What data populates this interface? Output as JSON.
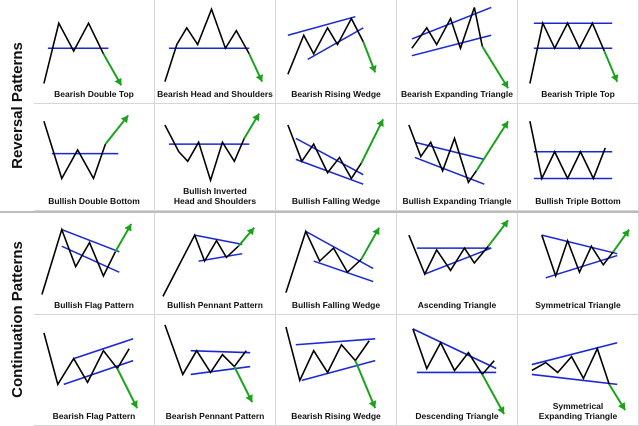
{
  "groups": {
    "reversal": "Reversal Patterns",
    "continuation": "Continuation Patterns"
  },
  "colors": {
    "price": "#000000",
    "trendline": "#1a28d6",
    "arrow": "#1aa31a"
  },
  "patterns": [
    {
      "label": "Bearish Double Top"
    },
    {
      "label": "Bearish Head and Shoulders"
    },
    {
      "label": "Bearish Rising Wedge"
    },
    {
      "label": "Bearish Expanding Triangle"
    },
    {
      "label": "Bearish Triple Top"
    },
    {
      "label": "Bullish Double Bottom"
    },
    {
      "label": "Bullish Inverted\nHead and Shoulders"
    },
    {
      "label": "Bullish Falling Wedge"
    },
    {
      "label": "Bullish Expanding Triangle"
    },
    {
      "label": "Bullish Triple Bottom"
    },
    {
      "label": "Bullish Flag Pattern"
    },
    {
      "label": "Bullish Pennant Pattern"
    },
    {
      "label": "Bullish Falling Wedge"
    },
    {
      "label": "Ascending Triangle"
    },
    {
      "label": "Symmetrical Triangle"
    },
    {
      "label": "Bearish Flag Pattern"
    },
    {
      "label": "Bearish Pennant Pattern"
    },
    {
      "label": "Bearish Rising Wedge"
    },
    {
      "label": "Descending Triangle"
    },
    {
      "label": "Symmetrical\nExpanding Triangle"
    }
  ]
}
